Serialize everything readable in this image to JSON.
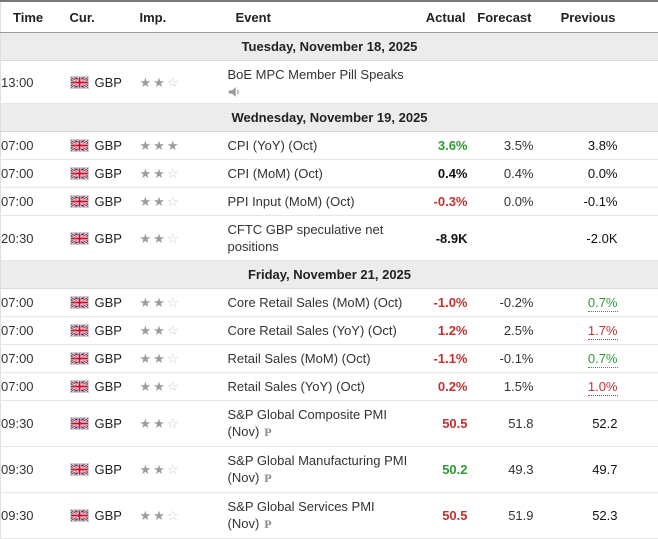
{
  "table": {
    "headers": {
      "time": "Time",
      "currency": "Cur.",
      "importance": "Imp.",
      "event": "Event",
      "actual": "Actual",
      "forecast": "Forecast",
      "previous": "Previous"
    },
    "max_importance": 3,
    "sections": [
      {
        "date": "Tuesday, November 18, 2025",
        "rows": [
          {
            "time": "13:00",
            "currency": "GBP",
            "importance": 2,
            "event": "BoE MPC Member Pill Speaks",
            "speaker": true,
            "preliminary": false,
            "actual": {
              "value": "",
              "color": "black",
              "revised": false
            },
            "forecast": "",
            "previous": {
              "value": "",
              "color": "black",
              "revised": false
            }
          }
        ]
      },
      {
        "date": "Wednesday, November 19, 2025",
        "rows": [
          {
            "time": "07:00",
            "currency": "GBP",
            "importance": 3,
            "event": "CPI (YoY) (Oct)",
            "speaker": false,
            "preliminary": false,
            "actual": {
              "value": "3.6%",
              "color": "green",
              "revised": false
            },
            "forecast": "3.5%",
            "previous": {
              "value": "3.8%",
              "color": "black",
              "revised": false
            }
          },
          {
            "time": "07:00",
            "currency": "GBP",
            "importance": 2,
            "event": "CPI (MoM) (Oct)",
            "speaker": false,
            "preliminary": false,
            "actual": {
              "value": "0.4%",
              "color": "black",
              "revised": false
            },
            "forecast": "0.4%",
            "previous": {
              "value": "0.0%",
              "color": "black",
              "revised": false
            }
          },
          {
            "time": "07:00",
            "currency": "GBP",
            "importance": 2,
            "event": "PPI Input (MoM) (Oct)",
            "speaker": false,
            "preliminary": false,
            "actual": {
              "value": "-0.3%",
              "color": "red",
              "revised": false
            },
            "forecast": "0.0%",
            "previous": {
              "value": "-0.1%",
              "color": "black",
              "revised": false
            }
          },
          {
            "time": "20:30",
            "currency": "GBP",
            "importance": 2,
            "event": "CFTC GBP speculative net positions",
            "speaker": false,
            "preliminary": false,
            "actual": {
              "value": "-8.9K",
              "color": "black",
              "revised": false
            },
            "forecast": "",
            "previous": {
              "value": "-2.0K",
              "color": "black",
              "revised": false
            }
          }
        ]
      },
      {
        "date": "Friday, November 21, 2025",
        "rows": [
          {
            "time": "07:00",
            "currency": "GBP",
            "importance": 2,
            "event": "Core Retail Sales (MoM) (Oct)",
            "speaker": false,
            "preliminary": false,
            "actual": {
              "value": "-1.0%",
              "color": "red",
              "revised": false
            },
            "forecast": "-0.2%",
            "previous": {
              "value": "0.7%",
              "color": "green",
              "revised": true
            }
          },
          {
            "time": "07:00",
            "currency": "GBP",
            "importance": 2,
            "event": "Core Retail Sales (YoY) (Oct)",
            "speaker": false,
            "preliminary": false,
            "actual": {
              "value": "1.2%",
              "color": "red",
              "revised": false
            },
            "forecast": "2.5%",
            "previous": {
              "value": "1.7%",
              "color": "red",
              "revised": true
            }
          },
          {
            "time": "07:00",
            "currency": "GBP",
            "importance": 2,
            "event": "Retail Sales (MoM) (Oct)",
            "speaker": false,
            "preliminary": false,
            "actual": {
              "value": "-1.1%",
              "color": "red",
              "revised": false
            },
            "forecast": "-0.1%",
            "previous": {
              "value": "0.7%",
              "color": "green",
              "revised": true
            }
          },
          {
            "time": "07:00",
            "currency": "GBP",
            "importance": 2,
            "event": "Retail Sales (YoY) (Oct)",
            "speaker": false,
            "preliminary": false,
            "actual": {
              "value": "0.2%",
              "color": "red",
              "revised": false
            },
            "forecast": "1.5%",
            "previous": {
              "value": "1.0%",
              "color": "red",
              "revised": true
            }
          },
          {
            "time": "09:30",
            "currency": "GBP",
            "importance": 2,
            "event": "S&P Global Composite PMI (Nov)",
            "speaker": false,
            "preliminary": true,
            "actual": {
              "value": "50.5",
              "color": "red",
              "revised": false
            },
            "forecast": "51.8",
            "previous": {
              "value": "52.2",
              "color": "black",
              "revised": false
            }
          },
          {
            "time": "09:30",
            "currency": "GBP",
            "importance": 2,
            "event": "S&P Global Manufacturing PMI (Nov)",
            "speaker": false,
            "preliminary": true,
            "actual": {
              "value": "50.2",
              "color": "green",
              "revised": false
            },
            "forecast": "49.3",
            "previous": {
              "value": "49.7",
              "color": "black",
              "revised": false
            }
          },
          {
            "time": "09:30",
            "currency": "GBP",
            "importance": 2,
            "event": "S&P Global Services PMI (Nov)",
            "speaker": false,
            "preliminary": true,
            "actual": {
              "value": "50.5",
              "color": "red",
              "revised": false
            },
            "forecast": "51.9",
            "previous": {
              "value": "52.3",
              "color": "black",
              "revised": false
            }
          }
        ]
      }
    ]
  },
  "icons": {
    "flag": "uk-flag",
    "star_full": "★",
    "star_empty": "☆",
    "speaker": "speaker-icon",
    "preliminary_label": "P"
  },
  "colors": {
    "green": "#2f9932",
    "red": "#c43131",
    "black": "#111111",
    "section_bg": "#ececec"
  }
}
